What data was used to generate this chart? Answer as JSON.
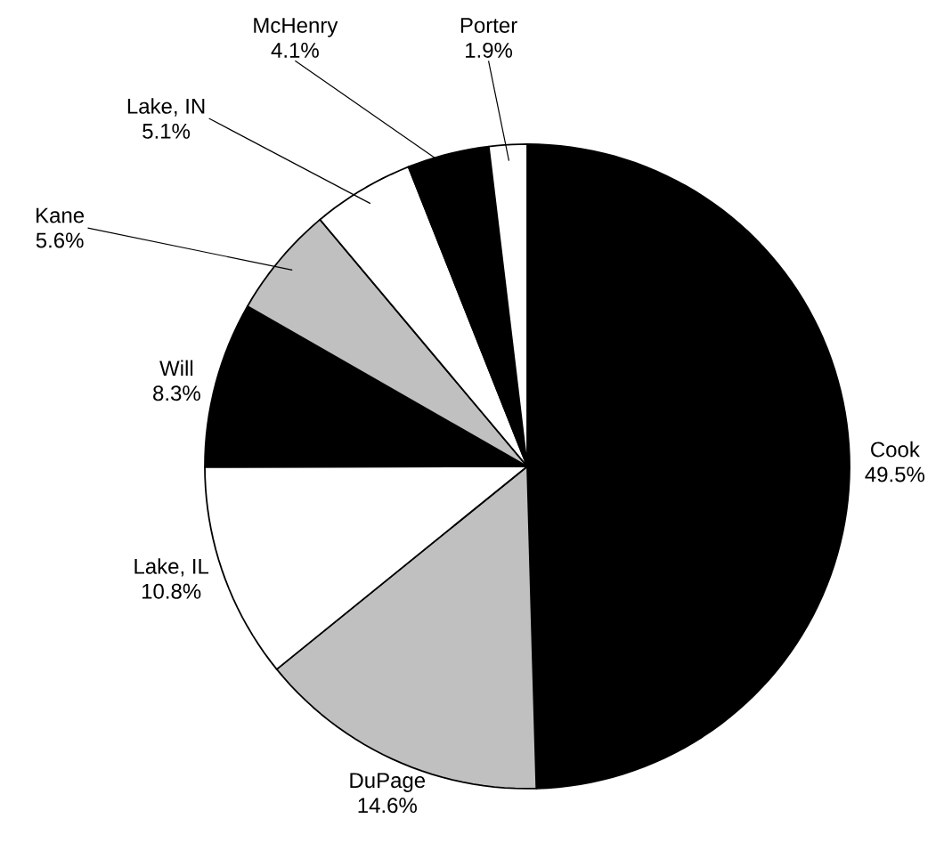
{
  "chart_data": {
    "type": "pie",
    "categories": [
      "Cook",
      "DuPage",
      "Lake, IL",
      "Will",
      "Kane",
      "Lake, IN",
      "McHenry",
      "Porter"
    ],
    "values": [
      49.5,
      14.6,
      10.8,
      8.3,
      5.6,
      5.1,
      4.1,
      1.9
    ],
    "value_labels": [
      "49.5%",
      "14.6%",
      "10.8%",
      "8.3%",
      "5.6%",
      "5.1%",
      "4.1%",
      "1.9%"
    ],
    "colors": [
      "#000000",
      "#c0c0c0",
      "#ffffff",
      "#000000",
      "#c0c0c0",
      "#ffffff",
      "#000000",
      "#ffffff"
    ]
  }
}
